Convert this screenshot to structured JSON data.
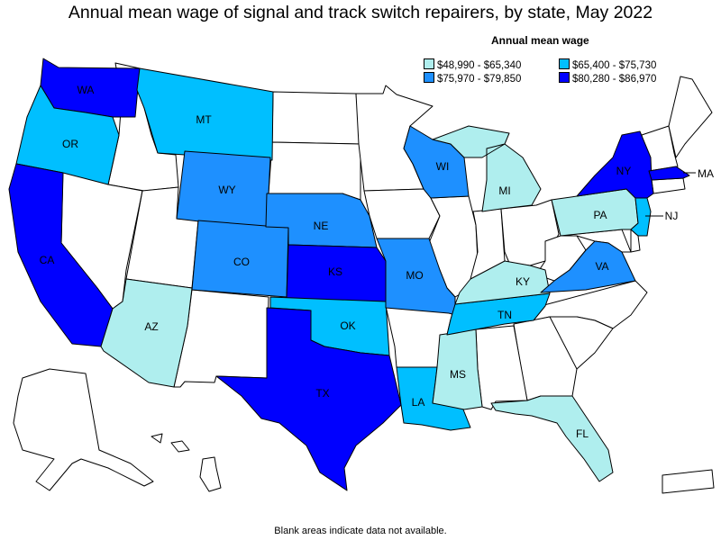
{
  "title": "Annual mean wage of signal and track switch repairers, by state, May 2022",
  "legend": {
    "title": "Annual mean wage",
    "items": [
      {
        "label": "$48,990 - $65,340",
        "color": "#afeeee"
      },
      {
        "label": "$65,400 - $75,730",
        "color": "#00bfff"
      },
      {
        "label": "$75,970 - $79,850",
        "color": "#1e90ff"
      },
      {
        "label": "$80,280 - $86,970",
        "color": "#0000ff"
      }
    ]
  },
  "footnote": "Blank areas indicate data not available.",
  "states": {
    "WA": {
      "label": "WA",
      "tier": 3
    },
    "OR": {
      "label": "OR",
      "tier": 1
    },
    "CA": {
      "label": "CA",
      "tier": 3
    },
    "MT": {
      "label": "MT",
      "tier": 1
    },
    "WY": {
      "label": "WY",
      "tier": 2
    },
    "CO": {
      "label": "CO",
      "tier": 2
    },
    "NE": {
      "label": "NE",
      "tier": 2
    },
    "KS": {
      "label": "KS",
      "tier": 3
    },
    "OK": {
      "label": "OK",
      "tier": 1
    },
    "TX": {
      "label": "TX",
      "tier": 3
    },
    "AZ": {
      "label": "AZ",
      "tier": 0
    },
    "MO": {
      "label": "MO",
      "tier": 2
    },
    "LA": {
      "label": "LA",
      "tier": 1
    },
    "MS": {
      "label": "MS",
      "tier": 0
    },
    "TN": {
      "label": "TN",
      "tier": 1
    },
    "KY": {
      "label": "KY",
      "tier": 0
    },
    "WI": {
      "label": "WI",
      "tier": 2
    },
    "MI": {
      "label": "MI",
      "tier": 0
    },
    "FL": {
      "label": "FL",
      "tier": 0
    },
    "VA": {
      "label": "VA",
      "tier": 2
    },
    "PA": {
      "label": "PA",
      "tier": 0
    },
    "NY": {
      "label": "NY",
      "tier": 3
    },
    "NJ": {
      "label": "NJ",
      "tier": 1
    },
    "MA": {
      "label": "MA",
      "tier": 3
    }
  }
}
